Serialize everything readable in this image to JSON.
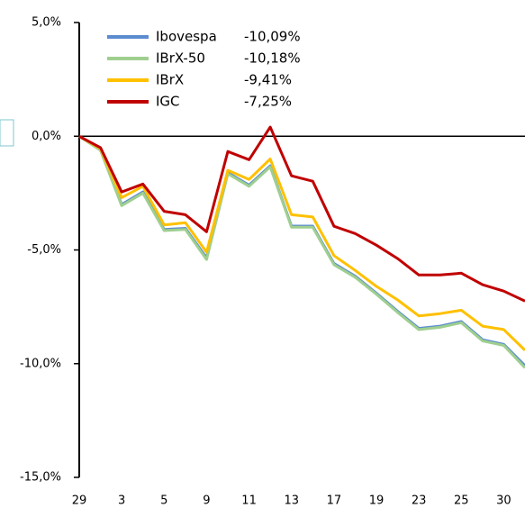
{
  "chart_data": {
    "type": "line",
    "categories": [
      "29",
      null,
      "3",
      null,
      "5",
      null,
      "9",
      null,
      "11",
      null,
      "13",
      null,
      "17",
      null,
      "19",
      null,
      "23",
      null,
      "25",
      null,
      "30",
      null
    ],
    "series": [
      {
        "name": "Ibovespa",
        "color": "#5b8ccf",
        "return_label": "-10,09%",
        "values": [
          0,
          -0.6,
          -3.0,
          -2.45,
          -4.1,
          -4.05,
          -5.35,
          -1.6,
          -2.15,
          -1.3,
          -3.95,
          -3.95,
          -5.6,
          -6.15,
          -6.9,
          -7.7,
          -8.45,
          -8.35,
          -8.15,
          -8.95,
          -9.15,
          -10.09
        ]
      },
      {
        "name": "IBrX-50",
        "color": "#9fcf8f",
        "return_label": "-10,18%",
        "values": [
          0,
          -0.62,
          -3.05,
          -2.5,
          -4.15,
          -4.1,
          -5.42,
          -1.65,
          -2.2,
          -1.35,
          -4.0,
          -4.0,
          -5.65,
          -6.2,
          -6.95,
          -7.75,
          -8.5,
          -8.4,
          -8.2,
          -9.0,
          -9.2,
          -10.18
        ]
      },
      {
        "name": "IBrX",
        "color": "#ffc000",
        "return_label": "-9,41%",
        "values": [
          0,
          -0.55,
          -2.7,
          -2.2,
          -3.9,
          -3.8,
          -5.1,
          -1.5,
          -1.9,
          -1.0,
          -3.45,
          -3.55,
          -5.25,
          -5.9,
          -6.6,
          -7.2,
          -7.9,
          -7.8,
          -7.65,
          -8.35,
          -8.5,
          -9.41
        ]
      },
      {
        "name": "IGC",
        "color": "#c00000",
        "return_label": "-7,25%",
        "values": [
          0,
          -0.5,
          -2.45,
          -2.1,
          -3.3,
          -3.45,
          -4.2,
          -0.67,
          -1.03,
          0.4,
          -1.74,
          -1.98,
          -3.96,
          -4.28,
          -4.79,
          -5.38,
          -6.1,
          -6.1,
          -6.02,
          -6.53,
          -6.81,
          -7.25
        ]
      }
    ],
    "ylim": [
      -15,
      5
    ],
    "yticks": [
      {
        "value": 5,
        "label": "5,0%"
      },
      {
        "value": 0,
        "label": "0,0%"
      },
      {
        "value": -5,
        "label": "-5,0%"
      },
      {
        "value": -10,
        "label": "-10,0%"
      },
      {
        "value": -15,
        "label": "-15,0%"
      }
    ],
    "grid": false,
    "legend": "upper left"
  }
}
